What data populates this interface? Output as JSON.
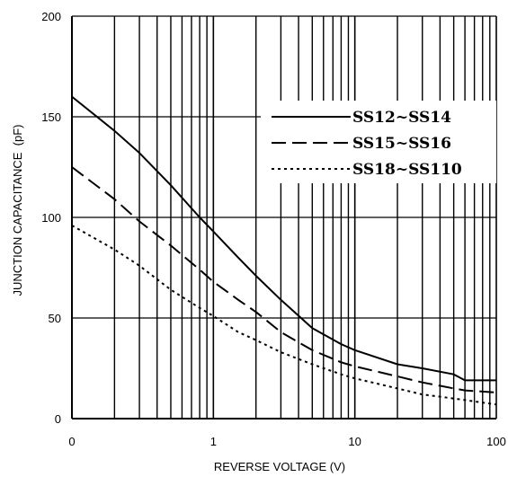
{
  "chart_data": {
    "type": "line",
    "xlabel": "REVERSE VOLTAGE (V)",
    "ylabel": "JUNCTION CAPACITANCE  (pF)",
    "x_scale": "log",
    "xlim": [
      0.1,
      100
    ],
    "ylim": [
      0,
      200
    ],
    "x_tick_labels": [
      "0",
      "1",
      "10",
      "100"
    ],
    "y_tick_labels": [
      "0",
      "50",
      "100",
      "150",
      "200"
    ],
    "grid": true,
    "legend_position": "top-right",
    "series": [
      {
        "name": "SS12~SS14",
        "line_style": "solid",
        "color": "#000000",
        "x": [
          0.1,
          0.2,
          0.3,
          0.5,
          0.8,
          1,
          1.5,
          2,
          3,
          5,
          8,
          10,
          20,
          30,
          50,
          60,
          100
        ],
        "y": [
          160,
          143,
          132,
          116,
          100,
          93,
          80,
          71,
          59,
          45,
          37,
          34,
          27,
          25,
          22,
          19,
          19
        ]
      },
      {
        "name": "SS15~SS16",
        "line_style": "dashed",
        "color": "#000000",
        "x": [
          0.1,
          0.2,
          0.3,
          0.5,
          0.8,
          1,
          1.5,
          2,
          3,
          5,
          8,
          10,
          20,
          30,
          50,
          60,
          100
        ],
        "y": [
          125,
          109,
          98,
          86,
          74,
          68,
          59,
          53,
          43,
          34,
          28,
          26,
          21,
          18,
          15,
          14,
          13
        ]
      },
      {
        "name": "SS18~SS110",
        "line_style": "dotted",
        "color": "#000000",
        "x": [
          0.1,
          0.2,
          0.3,
          0.5,
          0.8,
          1,
          1.5,
          2,
          3,
          5,
          8,
          10,
          20,
          30,
          50,
          100
        ],
        "y": [
          96,
          84,
          76,
          64,
          55,
          51,
          43,
          39,
          33,
          27,
          22,
          20,
          15,
          12,
          10,
          7
        ]
      }
    ]
  },
  "ui": {
    "background_color": "#ffffff",
    "grid_color": "#000000"
  }
}
